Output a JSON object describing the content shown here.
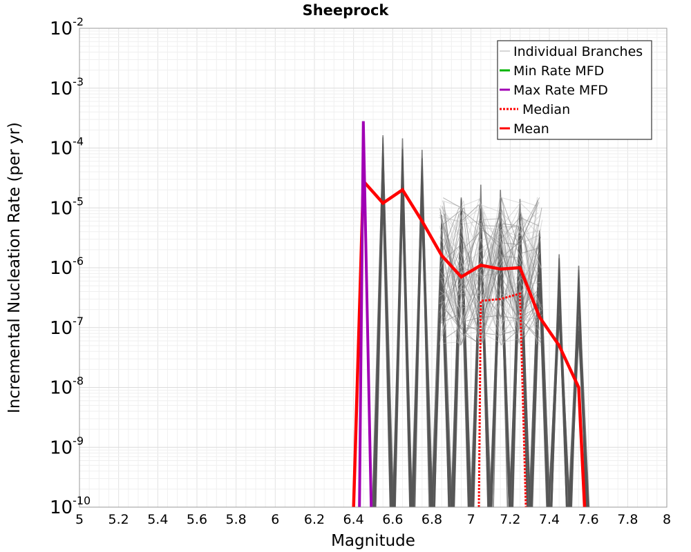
{
  "chart_data": {
    "type": "line",
    "title": "Sheeprock",
    "xlabel": "Magnitude",
    "ylabel": "Incremental Nucleation Rate (per yr)",
    "xlim": [
      5,
      8
    ],
    "ylim": [
      1e-10,
      0.01
    ],
    "y_scale": "log",
    "grid": true,
    "legend_position": "top-right",
    "x_ticks": [
      "5",
      "5.2",
      "5.4",
      "5.6",
      "5.8",
      "6",
      "6.2",
      "6.4",
      "6.6",
      "6.8",
      "7",
      "7.2",
      "7.4",
      "7.6",
      "7.8",
      "8"
    ],
    "y_ticks": [
      {
        "base": "10",
        "exp": "-10"
      },
      {
        "base": "10",
        "exp": "-9"
      },
      {
        "base": "10",
        "exp": "-8"
      },
      {
        "base": "10",
        "exp": "-7"
      },
      {
        "base": "10",
        "exp": "-6"
      },
      {
        "base": "10",
        "exp": "-5"
      },
      {
        "base": "10",
        "exp": "-4"
      },
      {
        "base": "10",
        "exp": "-3"
      },
      {
        "base": "10",
        "exp": "-2"
      }
    ],
    "legend": [
      {
        "name": "Individual Branches",
        "color": "#c8c8c8",
        "style": "solid"
      },
      {
        "name": "Min Rate MFD",
        "color": "#00b400",
        "style": "solid"
      },
      {
        "name": "Max Rate MFD",
        "color": "#a000b4",
        "style": "solid"
      },
      {
        "name": "Median",
        "color": "#ff0000",
        "style": "dotted"
      },
      {
        "name": "Mean",
        "color": "#ff0000",
        "style": "solid"
      }
    ],
    "series": [
      {
        "name": "Mean",
        "color": "#ff0000",
        "x": [
          6.4,
          6.45,
          6.55,
          6.65,
          6.75,
          6.85,
          6.95,
          7.05,
          7.15,
          7.25,
          7.35,
          7.45,
          7.55,
          7.58
        ],
        "y": [
          1e-10,
          2.8e-05,
          1.2e-05,
          2e-05,
          6e-06,
          1.6e-06,
          7e-07,
          1.1e-06,
          9.5e-07,
          1e-06,
          1.5e-07,
          5e-08,
          1e-08,
          1e-10
        ]
      },
      {
        "name": "Median",
        "color": "#ff0000",
        "x": [
          7.04,
          7.05,
          7.15,
          7.25,
          7.28
        ],
        "y": [
          1e-10,
          2.8e-07,
          3e-07,
          3.7e-07,
          1e-10
        ]
      },
      {
        "name": "Max Rate MFD",
        "color": "#a000b4",
        "x": [
          6.43,
          6.45,
          6.49
        ],
        "y": [
          1e-10,
          0.00028,
          1e-10
        ]
      },
      {
        "name": "Individual Branches",
        "color": "#555555",
        "spikes": [
          {
            "x": 6.55,
            "peak": 0.00019
          },
          {
            "x": 6.65,
            "peak": 0.00019
          },
          {
            "x": 6.75,
            "peak": 0.0001
          },
          {
            "x": 6.85,
            "peak": 1.2e-05
          },
          {
            "x": 6.95,
            "peak": 1.5e-05
          },
          {
            "x": 7.05,
            "peak": 3e-05
          },
          {
            "x": 7.15,
            "peak": 2.5e-05
          },
          {
            "x": 7.25,
            "peak": 1.5e-05
          },
          {
            "x": 7.35,
            "peak": 4.5e-06
          },
          {
            "x": 7.45,
            "peak": 2.7e-06
          },
          {
            "x": 7.55,
            "peak": 1.4e-06
          }
        ]
      }
    ]
  }
}
